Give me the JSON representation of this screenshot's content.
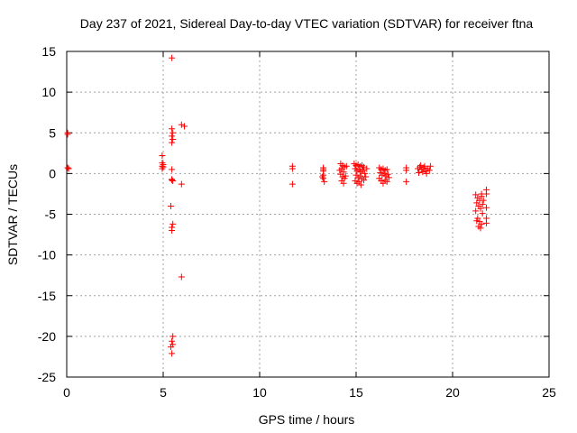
{
  "chart_data": {
    "type": "scatter",
    "title": "Day 237 of 2021, Sidereal Day-to-day VTEC variation (SDTVAR) for receiver ftna",
    "xlabel": "GPS time / hours",
    "ylabel": "SDTVAR / TECUs",
    "xlim": [
      0,
      25
    ],
    "ylim": [
      -25,
      15
    ],
    "xticks": [
      0,
      5,
      10,
      15,
      20,
      25
    ],
    "yticks": [
      -25,
      -20,
      -15,
      -10,
      -5,
      0,
      5,
      10,
      15
    ],
    "grid": true,
    "marker": "+",
    "color": "#ff0000",
    "series": [
      {
        "name": "ftna",
        "points": [
          [
            0.05,
            4.8
          ],
          [
            0.05,
            5.0
          ],
          [
            0.05,
            0.7
          ],
          [
            0.1,
            0.6
          ],
          [
            4.95,
            2.2
          ],
          [
            4.95,
            1.3
          ],
          [
            4.95,
            0.9
          ],
          [
            4.95,
            0.6
          ],
          [
            5.0,
            1.1
          ],
          [
            5.0,
            0.8
          ],
          [
            5.45,
            14.2
          ],
          [
            5.45,
            5.5
          ],
          [
            5.5,
            5.0
          ],
          [
            5.45,
            4.6
          ],
          [
            5.5,
            4.2
          ],
          [
            5.45,
            3.8
          ],
          [
            5.45,
            0.5
          ],
          [
            5.45,
            -0.8
          ],
          [
            5.5,
            -0.9
          ],
          [
            5.45,
            -0.7
          ],
          [
            5.4,
            -4.0
          ],
          [
            5.5,
            -6.2
          ],
          [
            5.45,
            -6.6
          ],
          [
            5.45,
            -7.0
          ],
          [
            5.5,
            -20.0
          ],
          [
            5.45,
            -20.6
          ],
          [
            5.5,
            -21.0
          ],
          [
            5.4,
            -21.3
          ],
          [
            5.45,
            -22.1
          ],
          [
            5.95,
            6.0
          ],
          [
            6.1,
            5.8
          ],
          [
            5.95,
            -1.3
          ],
          [
            5.95,
            -12.7
          ],
          [
            11.7,
            0.9
          ],
          [
            11.7,
            0.6
          ],
          [
            11.7,
            -1.3
          ],
          [
            13.3,
            0.7
          ],
          [
            13.3,
            0.3
          ],
          [
            13.3,
            -0.2
          ],
          [
            13.3,
            -0.6
          ],
          [
            13.35,
            -1.0
          ],
          [
            13.3,
            0.5
          ],
          [
            13.25,
            -0.4
          ],
          [
            14.2,
            1.2
          ],
          [
            14.3,
            1.0
          ],
          [
            14.4,
            0.8
          ],
          [
            14.25,
            0.6
          ],
          [
            14.35,
            0.2
          ],
          [
            14.2,
            -0.1
          ],
          [
            14.3,
            -0.4
          ],
          [
            14.4,
            -0.6
          ],
          [
            14.25,
            -0.9
          ],
          [
            14.35,
            -1.2
          ],
          [
            14.5,
            0.9
          ],
          [
            14.15,
            0.4
          ],
          [
            14.45,
            -0.3
          ],
          [
            14.9,
            1.2
          ],
          [
            15.0,
            1.0
          ],
          [
            15.1,
            1.1
          ],
          [
            15.2,
            0.9
          ],
          [
            15.3,
            1.0
          ],
          [
            15.4,
            0.8
          ],
          [
            14.95,
            0.6
          ],
          [
            15.05,
            0.3
          ],
          [
            15.15,
            0.5
          ],
          [
            15.25,
            0.2
          ],
          [
            15.35,
            0.4
          ],
          [
            15.45,
            0.0
          ],
          [
            15.0,
            -0.2
          ],
          [
            15.1,
            -0.5
          ],
          [
            15.2,
            -0.3
          ],
          [
            15.3,
            -0.6
          ],
          [
            15.4,
            -0.8
          ],
          [
            14.95,
            -0.9
          ],
          [
            15.05,
            -1.2
          ],
          [
            15.15,
            -1.0
          ],
          [
            15.25,
            -1.4
          ],
          [
            15.5,
            -0.4
          ],
          [
            15.55,
            0.6
          ],
          [
            16.2,
            0.7
          ],
          [
            16.3,
            0.5
          ],
          [
            16.4,
            0.6
          ],
          [
            16.5,
            0.4
          ],
          [
            16.6,
            0.5
          ],
          [
            16.25,
            0.1
          ],
          [
            16.35,
            -0.2
          ],
          [
            16.45,
            0.0
          ],
          [
            16.55,
            -0.3
          ],
          [
            16.65,
            -0.1
          ],
          [
            16.2,
            -0.6
          ],
          [
            16.3,
            -0.9
          ],
          [
            16.4,
            -1.2
          ],
          [
            16.5,
            -0.8
          ],
          [
            16.6,
            -1.0
          ],
          [
            16.7,
            -0.5
          ],
          [
            17.6,
            0.7
          ],
          [
            17.6,
            0.4
          ],
          [
            17.6,
            -1.0
          ],
          [
            18.2,
            0.6
          ],
          [
            18.3,
            0.8
          ],
          [
            18.4,
            0.5
          ],
          [
            18.5,
            0.7
          ],
          [
            18.6,
            0.3
          ],
          [
            18.7,
            0.6
          ],
          [
            18.8,
            0.4
          ],
          [
            18.25,
            0.1
          ],
          [
            18.45,
            0.2
          ],
          [
            18.65,
            0.0
          ],
          [
            18.85,
            0.9
          ],
          [
            18.35,
            1.0
          ],
          [
            18.55,
            0.9
          ],
          [
            21.2,
            -2.6
          ],
          [
            21.3,
            -3.0
          ],
          [
            21.4,
            -3.3
          ],
          [
            21.5,
            -2.8
          ],
          [
            21.25,
            -3.6
          ],
          [
            21.35,
            -4.0
          ],
          [
            21.45,
            -4.3
          ],
          [
            21.55,
            -3.8
          ],
          [
            21.2,
            -4.6
          ],
          [
            21.3,
            -5.5
          ],
          [
            21.4,
            -5.9
          ],
          [
            21.5,
            -6.2
          ],
          [
            21.35,
            -6.5
          ],
          [
            21.45,
            -6.7
          ],
          [
            21.25,
            -5.8
          ],
          [
            21.55,
            -4.9
          ],
          [
            21.6,
            -3.3
          ],
          [
            21.5,
            -2.5
          ],
          [
            21.75,
            -2.0
          ],
          [
            21.75,
            -2.5
          ],
          [
            21.75,
            -4.2
          ],
          [
            21.75,
            -5.5
          ],
          [
            21.75,
            -6.1
          ]
        ]
      }
    ]
  }
}
